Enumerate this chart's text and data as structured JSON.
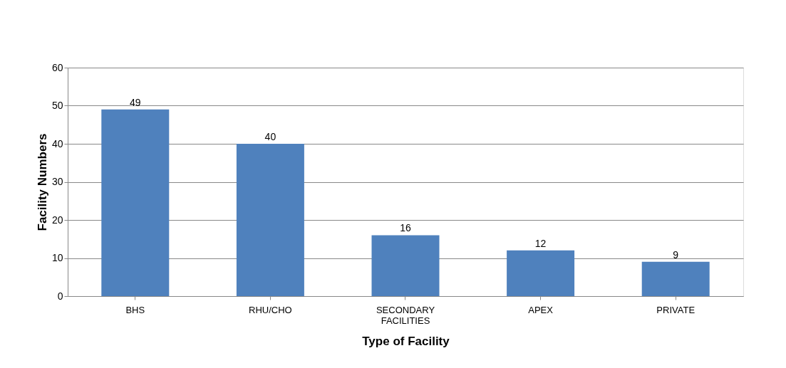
{
  "chart_data": {
    "type": "bar",
    "xlabel": "Type of Facility",
    "ylabel": "Facility Numbers",
    "categories": [
      "BHS",
      "RHU/CHO",
      "SECONDARY FACILITIES",
      "APEX",
      "PRIVATE"
    ],
    "values": [
      49,
      40,
      16,
      12,
      9
    ],
    "color": "#4f81bd",
    "ylim": [
      0,
      60
    ],
    "yticks": [
      0,
      10,
      20,
      30,
      40,
      50,
      60
    ],
    "grid": "y",
    "data_labels": true
  }
}
